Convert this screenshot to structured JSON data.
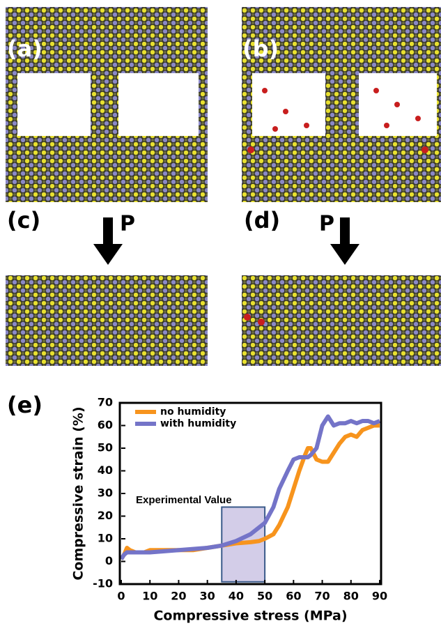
{
  "panels": [
    "(a)",
    "(b)",
    "(c)",
    "(d)"
  ],
  "arrow_labels": [
    "P",
    "P"
  ],
  "chart_data": {
    "type": "line",
    "panel_label": "(e)",
    "x_label": "Compressive stress (MPa)",
    "y_label": "Compressive strain (%)",
    "annotation": "Experimental Value",
    "highlight": {
      "x": [
        35,
        50
      ],
      "y": [
        -9,
        24
      ]
    },
    "x": [
      0,
      1,
      2,
      3,
      5,
      8,
      10,
      15,
      20,
      25,
      30,
      35,
      40,
      45,
      48,
      50,
      53,
      55,
      58,
      60,
      62,
      64,
      65,
      66,
      68,
      70,
      72,
      74,
      76,
      78,
      80,
      82,
      84,
      86,
      88,
      90
    ],
    "series": [
      {
        "name": "no humidity",
        "color": "#f7941d",
        "values": [
          1,
          3,
          6,
          5,
          4,
          4,
          5,
          5,
          5,
          5,
          6,
          7,
          8,
          8.5,
          9,
          10,
          12,
          16,
          24,
          32,
          40,
          47,
          50,
          50,
          45,
          44,
          44,
          48,
          52,
          55,
          56,
          55,
          58,
          59,
          60,
          60
        ]
      },
      {
        "name": "with humidity",
        "color": "#7474c8",
        "values": [
          1,
          3,
          4,
          4,
          4,
          4,
          4,
          4.5,
          5,
          5.5,
          6,
          7,
          9,
          12,
          15,
          17,
          24,
          32,
          40,
          45,
          46,
          46,
          46,
          47,
          50,
          60,
          64,
          60,
          61,
          61,
          62,
          61,
          62,
          62,
          61,
          62
        ]
      }
    ],
    "xlim": [
      0,
      90
    ],
    "ylim": [
      -10,
      70
    ],
    "xticks": [
      0,
      10,
      20,
      30,
      40,
      50,
      60,
      70,
      80,
      90
    ],
    "yticks": [
      -10,
      0,
      10,
      20,
      30,
      40,
      50,
      60,
      70
    ],
    "legend": "upper left"
  }
}
